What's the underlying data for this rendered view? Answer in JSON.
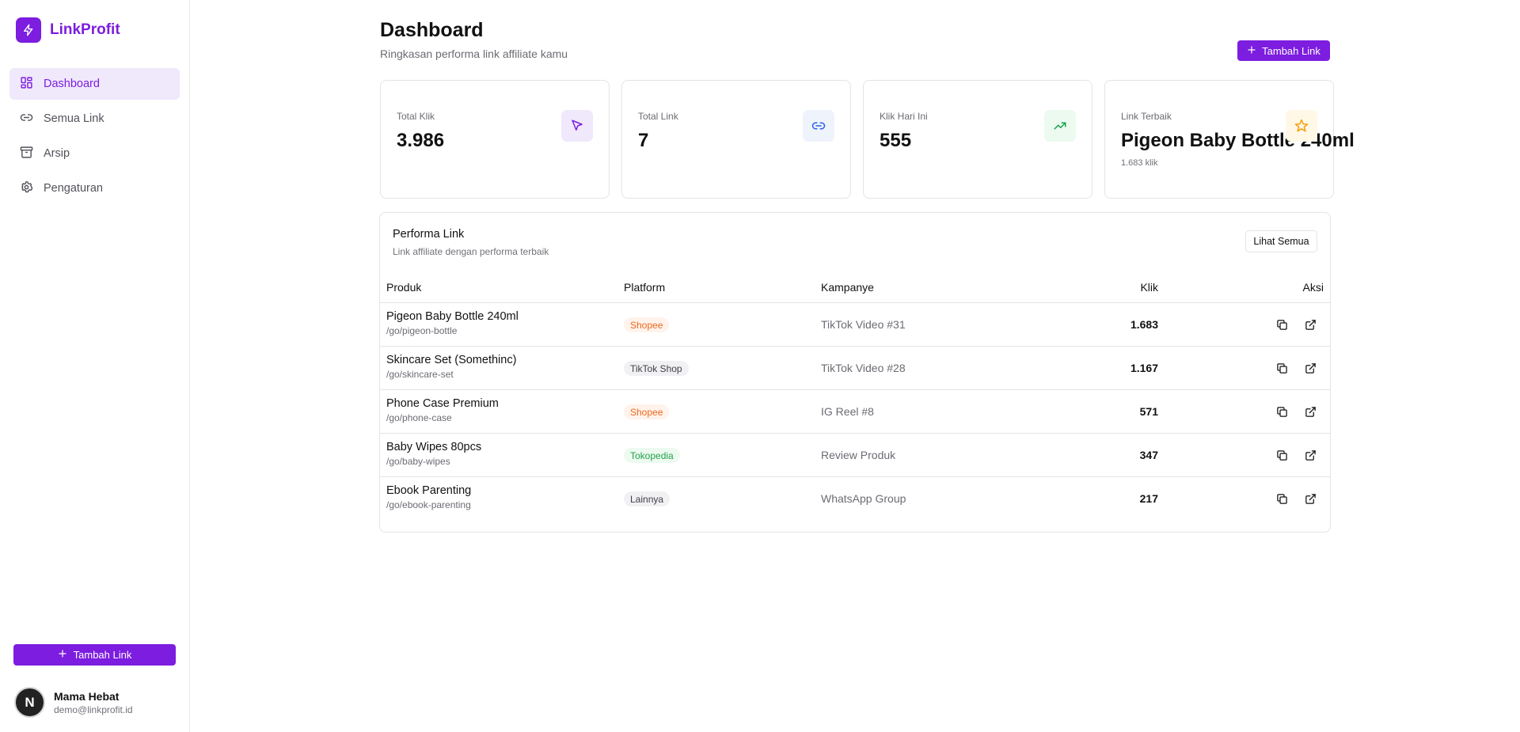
{
  "sidebar": {
    "brand": {
      "name": "LinkProfit",
      "icon": "lightning-bolt-icon"
    },
    "items": [
      {
        "label": "Dashboard",
        "icon": "layout-grid-icon",
        "active": true
      },
      {
        "label": "Semua Link",
        "icon": "link-icon",
        "active": false
      },
      {
        "label": "Arsip",
        "icon": "archive-icon",
        "active": false
      },
      {
        "label": "Pengaturan",
        "icon": "gear-icon",
        "active": false
      }
    ],
    "add_button": "Tambah Link",
    "user": {
      "initial": "N",
      "name": "Mama Hebat",
      "email": "demo@linkprofit.id"
    }
  },
  "header": {
    "title": "Dashboard",
    "subtitle": "Ringkasan performa link affiliate kamu",
    "add_button": "Tambah Link"
  },
  "stats": [
    {
      "label": "Total Klik",
      "value": "3.986",
      "icon": "cursor-pointer-icon"
    },
    {
      "label": "Total Link",
      "value": "7",
      "icon": "link-icon"
    },
    {
      "label": "Klik Hari Ini",
      "value": "555",
      "icon": "trending-up-icon"
    },
    {
      "label": "Link Terbaik",
      "value": "Pigeon Baby Bottle 240ml",
      "sub": "1.683 klik",
      "icon": "star-icon"
    }
  ],
  "performance": {
    "title": "Performa Link",
    "subtitle": "Link affiliate dengan performa terbaik",
    "see_all": "Lihat Semua",
    "columns": {
      "product": "Produk",
      "platform": "Platform",
      "campaign": "Kampanye",
      "clicks": "Klik",
      "actions": "Aksi"
    },
    "rows": [
      {
        "name": "Pigeon Baby Bottle 240ml",
        "slug": "/go/pigeon-bottle",
        "platform": "Shopee",
        "campaign": "TikTok Video #31",
        "clicks": "1.683"
      },
      {
        "name": "Skincare Set (Somethinc)",
        "slug": "/go/skincare-set",
        "platform": "TikTok Shop",
        "campaign": "TikTok Video #28",
        "clicks": "1.167"
      },
      {
        "name": "Phone Case Premium",
        "slug": "/go/phone-case",
        "platform": "Shopee",
        "campaign": "IG Reel #8",
        "clicks": "571"
      },
      {
        "name": "Baby Wipes 80pcs",
        "slug": "/go/baby-wipes",
        "platform": "Tokopedia",
        "campaign": "Review Produk",
        "clicks": "347"
      },
      {
        "name": "Ebook Parenting",
        "slug": "/go/ebook-parenting",
        "platform": "Lainnya",
        "campaign": "WhatsApp Group",
        "clicks": "217"
      }
    ]
  },
  "colors": {
    "accent": "#7c1de0",
    "shopee": "#ea6a1e",
    "shopee_bg": "#fff3eb",
    "tiktok_bg": "#f1f1f4",
    "tokopedia": "#22a34a",
    "tokopedia_bg": "#ecfaf0",
    "lainnya_bg": "#f1f1f4"
  }
}
